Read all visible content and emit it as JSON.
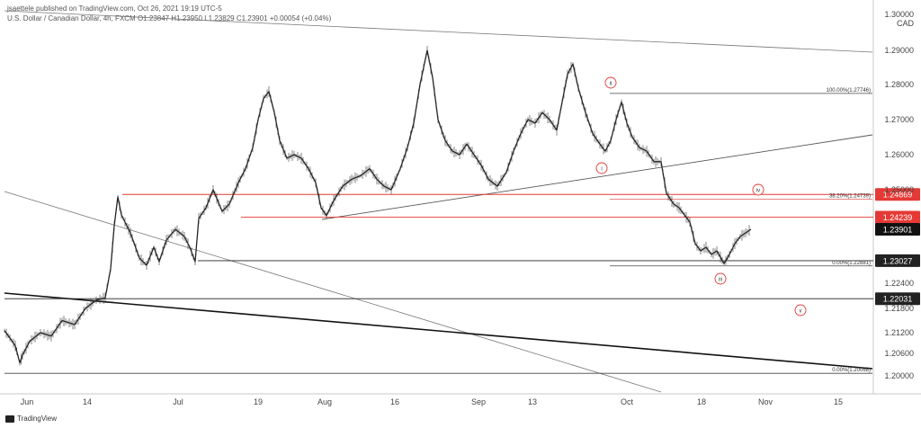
{
  "header": {
    "line1": "jsaettele published on TradingView.com, Oct 26, 2021 19:19 UTC-5",
    "line2": "U.S. Dollar / Canadian Dollar, 4h, FXCM  O1.23847  H1.23950  L1.23829  C1.23901  +0.00054 (+0.04%)"
  },
  "footer": {
    "brand": "TradingView"
  },
  "chart_data": {
    "type": "candlestick",
    "symbol": "U.S. Dollar / Canadian Dollar, 4h, FXCM",
    "currency": "CAD",
    "ylim": [
      1.198,
      1.3035
    ],
    "y_ticks": [
      "1.30000",
      "1.29000",
      "1.28000",
      "1.27000",
      "1.26000",
      "1.25000",
      "1.22400",
      "1.21800",
      "1.21200",
      "1.20600",
      "1.20000"
    ],
    "x_ticks": [
      "Jun",
      "14",
      "Jul",
      "19",
      "Aug",
      "16",
      "Sep",
      "13",
      "Oct",
      "18",
      "Nov",
      "15"
    ],
    "price_path": [
      [
        0,
        1.2125
      ],
      [
        6,
        1.2105
      ],
      [
        12,
        1.2082
      ],
      [
        17,
        1.2035
      ],
      [
        20,
        1.2055
      ],
      [
        28,
        1.2095
      ],
      [
        40,
        1.212
      ],
      [
        52,
        1.211
      ],
      [
        64,
        1.215
      ],
      [
        78,
        1.214
      ],
      [
        90,
        1.218
      ],
      [
        102,
        1.22
      ],
      [
        112,
        1.2205
      ],
      [
        118,
        1.228
      ],
      [
        122,
        1.24
      ],
      [
        126,
        1.248
      ],
      [
        130,
        1.243
      ],
      [
        140,
        1.238
      ],
      [
        150,
        1.231
      ],
      [
        158,
        1.229
      ],
      [
        166,
        1.234
      ],
      [
        172,
        1.23
      ],
      [
        180,
        1.236
      ],
      [
        190,
        1.239
      ],
      [
        200,
        1.237
      ],
      [
        206,
        1.234
      ],
      [
        212,
        1.23
      ],
      [
        216,
        1.242
      ],
      [
        224,
        1.245
      ],
      [
        232,
        1.25
      ],
      [
        242,
        1.244
      ],
      [
        250,
        1.246
      ],
      [
        260,
        1.252
      ],
      [
        268,
        1.256
      ],
      [
        276,
        1.262
      ],
      [
        282,
        1.27
      ],
      [
        288,
        1.276
      ],
      [
        294,
        1.278
      ],
      [
        300,
        1.272
      ],
      [
        306,
        1.264
      ],
      [
        314,
        1.259
      ],
      [
        322,
        1.26
      ],
      [
        330,
        1.259
      ],
      [
        338,
        1.256
      ],
      [
        346,
        1.252
      ],
      [
        352,
        1.245
      ],
      [
        358,
        1.2428
      ],
      [
        366,
        1.247
      ],
      [
        376,
        1.251
      ],
      [
        386,
        1.253
      ],
      [
        396,
        1.254
      ],
      [
        406,
        1.256
      ],
      [
        414,
        1.253
      ],
      [
        422,
        1.251
      ],
      [
        430,
        1.25
      ],
      [
        440,
        1.256
      ],
      [
        448,
        1.262
      ],
      [
        455,
        1.269
      ],
      [
        462,
        1.28
      ],
      [
        470,
        1.29
      ],
      [
        476,
        1.282
      ],
      [
        482,
        1.27
      ],
      [
        490,
        1.264
      ],
      [
        498,
        1.261
      ],
      [
        506,
        1.26
      ],
      [
        514,
        1.263
      ],
      [
        522,
        1.26
      ],
      [
        530,
        1.257
      ],
      [
        538,
        1.253
      ],
      [
        548,
        1.251
      ],
      [
        558,
        1.255
      ],
      [
        566,
        1.261
      ],
      [
        574,
        1.266
      ],
      [
        582,
        1.27
      ],
      [
        590,
        1.269
      ],
      [
        598,
        1.272
      ],
      [
        606,
        1.27
      ],
      [
        614,
        1.267
      ],
      [
        620,
        1.275
      ],
      [
        626,
        1.283
      ],
      [
        632,
        1.286
      ],
      [
        638,
        1.279
      ],
      [
        646,
        1.272
      ],
      [
        654,
        1.266
      ],
      [
        662,
        1.263
      ],
      [
        668,
        1.261
      ],
      [
        674,
        1.264
      ],
      [
        680,
        1.27
      ],
      [
        686,
        1.275
      ],
      [
        692,
        1.269
      ],
      [
        698,
        1.265
      ],
      [
        706,
        1.262
      ],
      [
        714,
        1.261
      ],
      [
        722,
        1.258
      ],
      [
        730,
        1.258
      ],
      [
        736,
        1.249
      ],
      [
        744,
        1.246
      ],
      [
        750,
        1.245
      ],
      [
        756,
        1.243
      ],
      [
        762,
        1.241
      ],
      [
        768,
        1.235
      ],
      [
        774,
        1.233
      ],
      [
        780,
        1.234
      ],
      [
        786,
        1.232
      ],
      [
        792,
        1.233
      ],
      [
        800,
        1.2295
      ],
      [
        806,
        1.232
      ],
      [
        812,
        1.235
      ],
      [
        818,
        1.237
      ],
      [
        824,
        1.238
      ],
      [
        830,
        1.239
      ]
    ],
    "levels": [
      {
        "price": 1.24869,
        "label": "1.24869",
        "kind": "red"
      },
      {
        "price": 1.24239,
        "label": "1.24239",
        "kind": "red"
      },
      {
        "price": 1.23901,
        "label": "1.23901",
        "kind": "current"
      },
      {
        "price": 1.23027,
        "label": "1.23027",
        "kind": "black"
      },
      {
        "price": 1.22031,
        "label": "1.22031",
        "kind": "black"
      }
    ],
    "fib_labels": [
      {
        "text": "100.00%(1.27746)"
      },
      {
        "text": "38.20%(1.24739)"
      },
      {
        "text": "0.00%(1.22881)"
      },
      {
        "text": "0.00%(1.20068)"
      }
    ],
    "wave_labels": [
      "ii",
      "i",
      "iv",
      "iii",
      "v"
    ]
  }
}
